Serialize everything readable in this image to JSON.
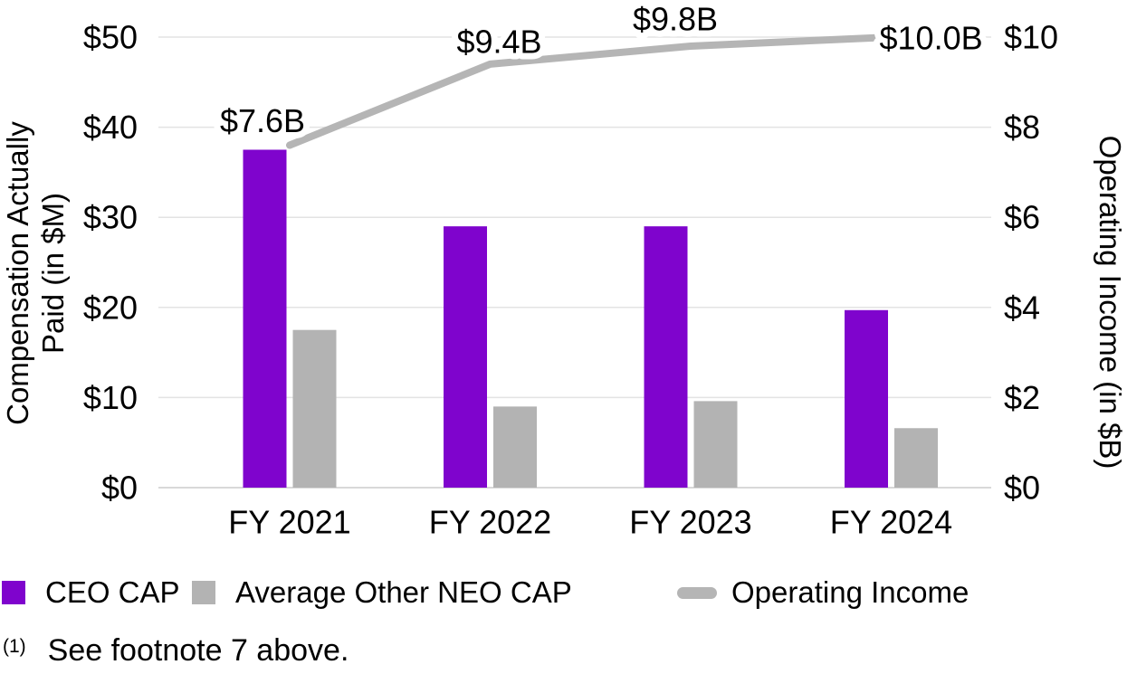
{
  "chart_data": {
    "type": "bar",
    "subtype": "grouped-bars-with-line-combo",
    "categories": [
      "FY 2021",
      "FY 2022",
      "FY 2023",
      "FY 2024"
    ],
    "series": [
      {
        "name": "CEO CAP",
        "type": "bar",
        "axis": "left",
        "unit": "$M",
        "values": [
          37.5,
          29.0,
          29.0,
          19.7
        ],
        "color": "#7F04CD"
      },
      {
        "name": "Average Other NEO CAP",
        "type": "bar",
        "axis": "left",
        "unit": "$M",
        "values": [
          17.5,
          9.0,
          9.6,
          6.6
        ],
        "color": "#B3B3B3"
      },
      {
        "name": "Operating Income",
        "type": "line",
        "axis": "right",
        "unit": "$B",
        "values": [
          7.6,
          9.4,
          9.8,
          10.0
        ],
        "point_labels": [
          "$7.6B",
          "$9.4B",
          "$9.8B",
          "$10.0B"
        ],
        "color": "#B5B5B5"
      }
    ],
    "left_axis": {
      "title_lines": [
        "Compensation Actually",
        "Paid (in $M)"
      ],
      "tick_labels": [
        "$0",
        "$10",
        "$20",
        "$30",
        "$40",
        "$50"
      ],
      "tick_values": [
        0,
        10,
        20,
        30,
        40,
        50
      ],
      "range": [
        0,
        50
      ]
    },
    "right_axis": {
      "title": "Operating Income (in $B)",
      "tick_labels": [
        "$0",
        "$2",
        "$4",
        "$6",
        "$8",
        "$10"
      ],
      "tick_values": [
        0,
        2,
        4,
        6,
        8,
        10
      ],
      "range": [
        0,
        10
      ]
    },
    "grid": true,
    "legend_position": "bottom-left"
  },
  "legend": {
    "items": [
      {
        "label": "CEO CAP",
        "swatch": "square",
        "color": "#7F04CD"
      },
      {
        "label": "Average Other NEO CAP",
        "swatch": "square",
        "color": "#B3B3B3"
      },
      {
        "label": "Operating Income",
        "swatch": "pill",
        "color": "#B5B5B5"
      }
    ]
  },
  "footnote": {
    "marker": "(1)",
    "text": "See footnote 7 above."
  },
  "colors": {
    "bar_purple": "#7F04CD",
    "bar_gray": "#B3B3B3",
    "line_gray": "#B5B5B5",
    "gridline": "#E3E3E3",
    "baseline": "#D9D9D9",
    "text": "#000000",
    "background": "#FFFFFF"
  }
}
